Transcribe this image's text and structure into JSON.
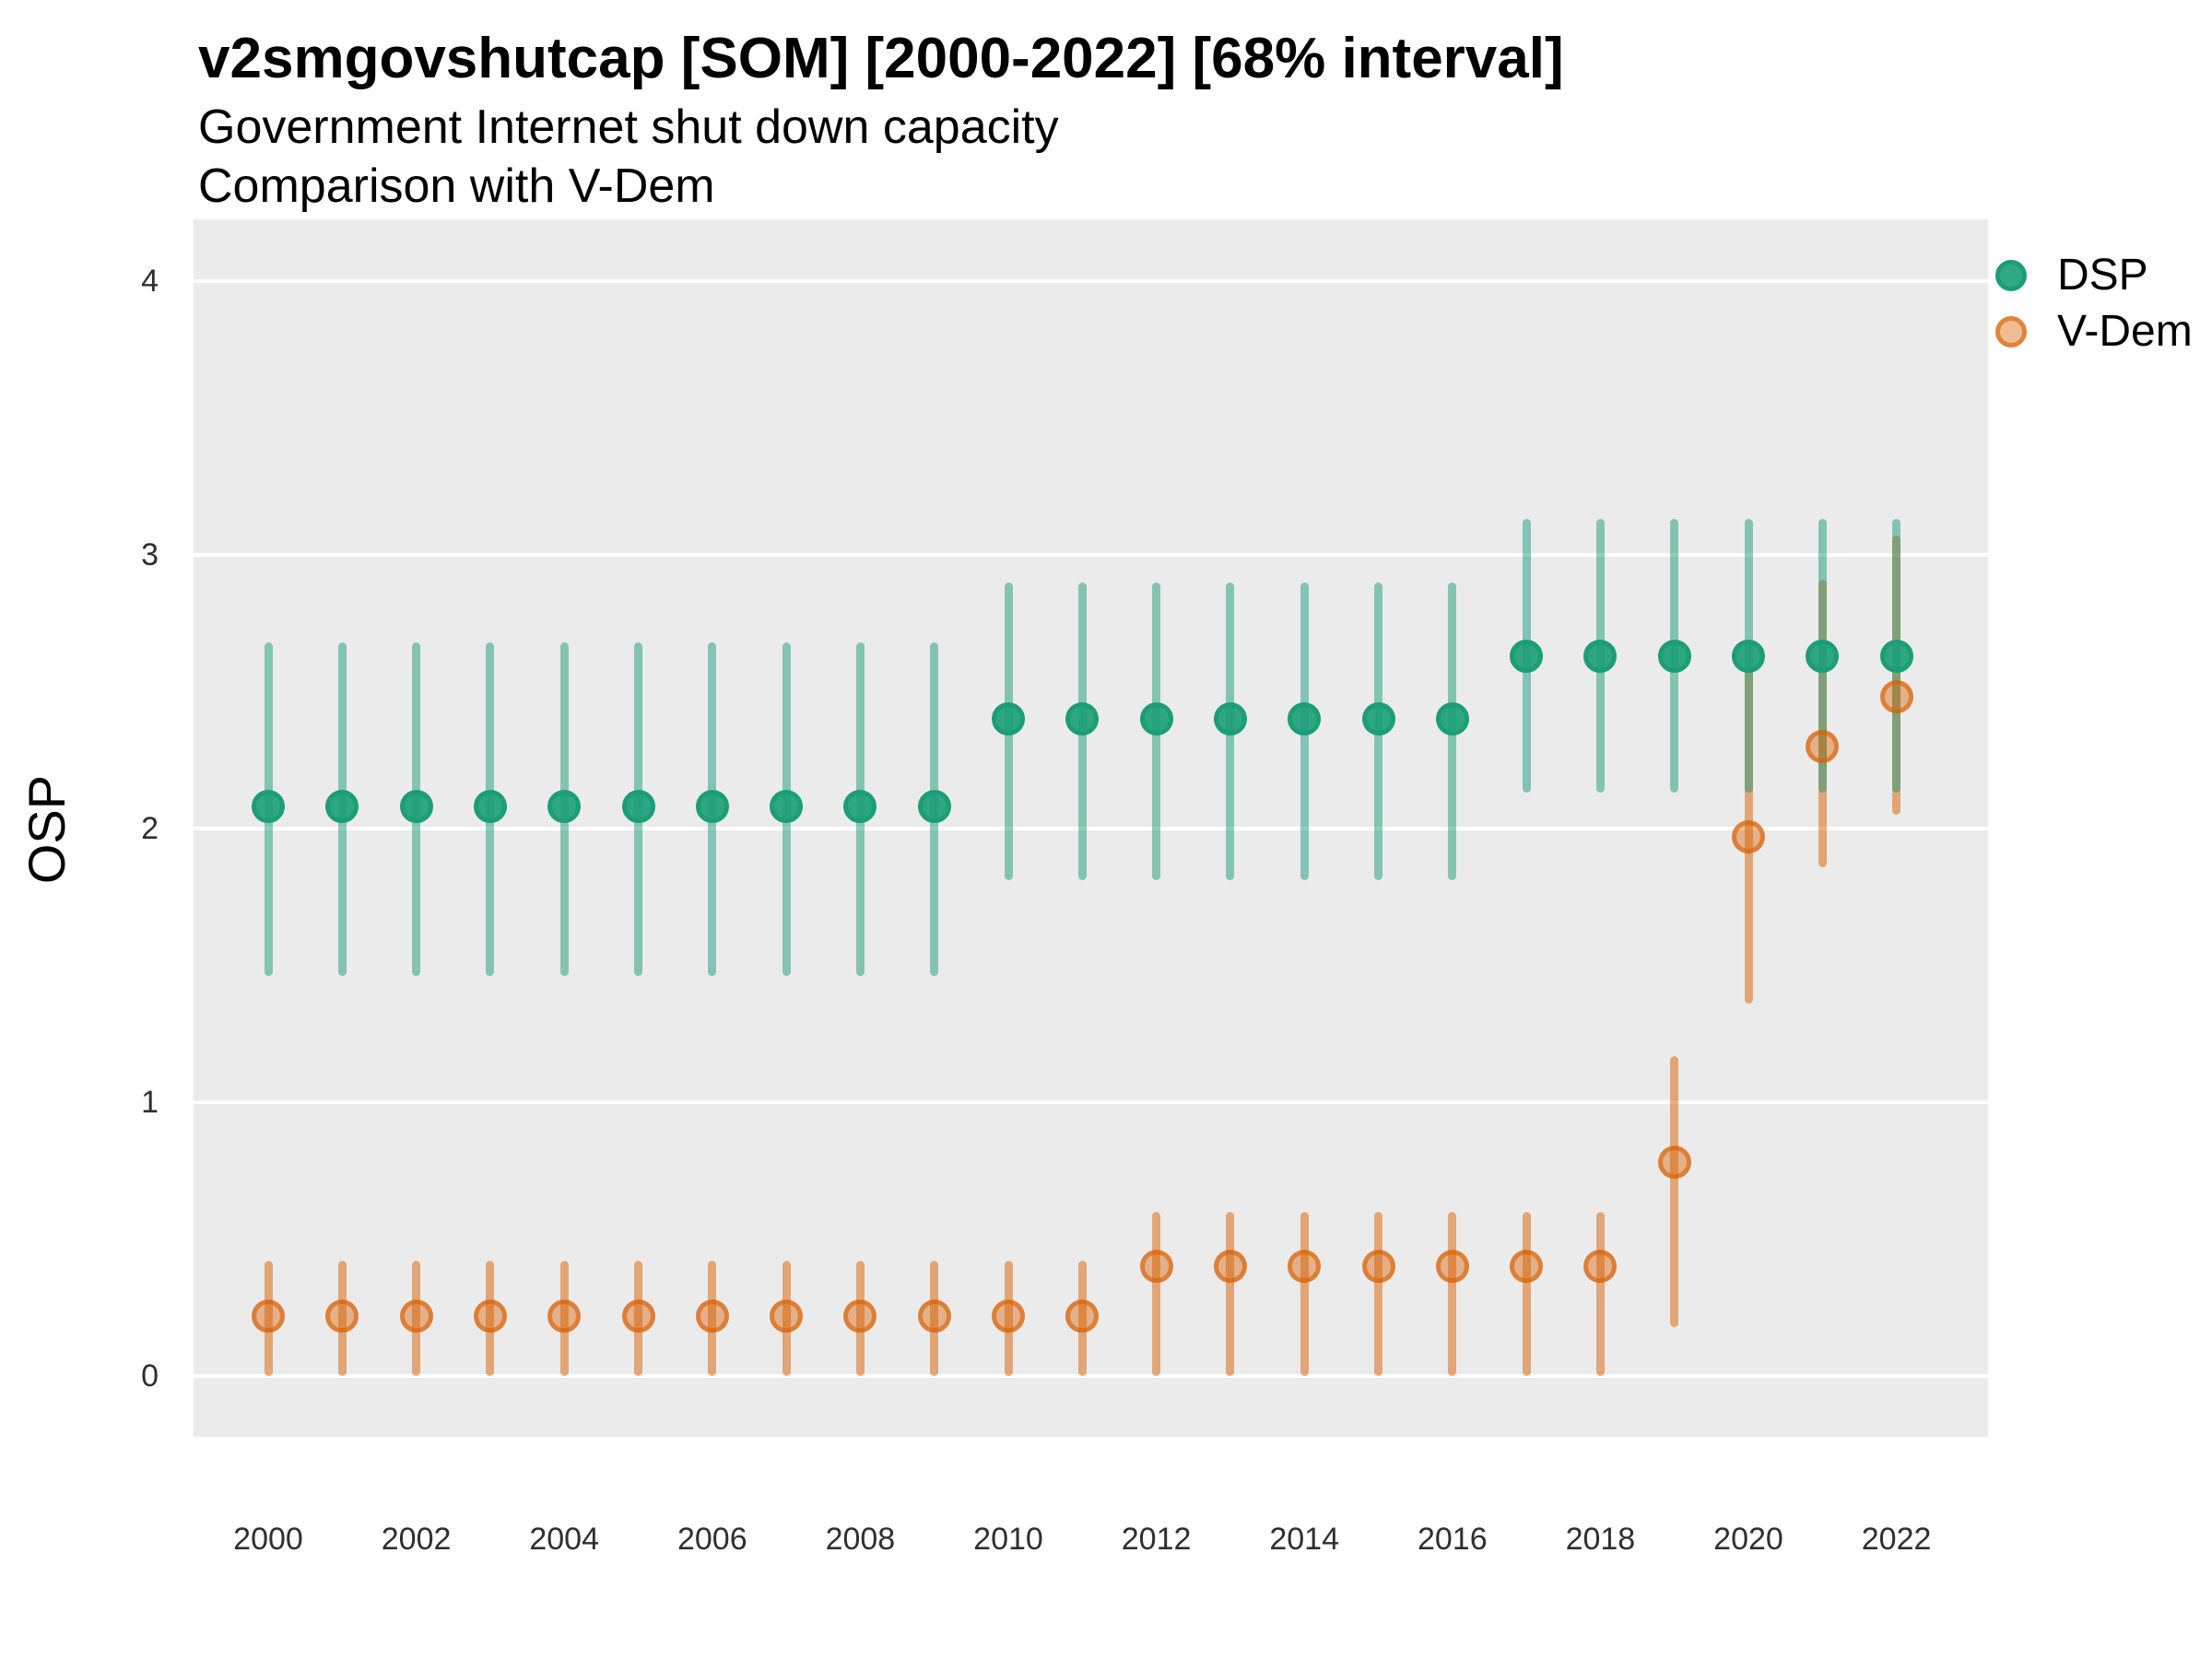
{
  "header": {
    "title": "v2smgovshutcap [SOM] [2000-2022] [68% interval]",
    "subtitle_line1": "Government Internet shut down capacity",
    "subtitle_line2": "Comparison with V-Dem"
  },
  "axes": {
    "y_title": "OSP",
    "y_tick_labels": [
      "4",
      "3",
      "2",
      "1",
      "0"
    ],
    "y_tick_values": [
      4,
      3,
      2,
      1,
      0
    ],
    "x_tick_years": [
      2000,
      2002,
      2004,
      2006,
      2008,
      2010,
      2012,
      2014,
      2016,
      2018,
      2020,
      2022
    ]
  },
  "legend": {
    "items": [
      {
        "label": "DSP",
        "color": "#1B9E77"
      },
      {
        "label": "V-Dem",
        "color": "#D95F02"
      }
    ]
  },
  "colors": {
    "panel_bg": "#EBEBEB",
    "gridline": "#FFFFFF",
    "dsp_green": "#1B9E77",
    "vdem_orange": "#D95F02"
  },
  "chart_data": {
    "type": "scatter",
    "subtype": "pointrange",
    "title": "v2smgovshutcap [SOM] [2000-2022] [68% interval]",
    "subtitle": [
      "Government Internet shut down capacity",
      "Comparison with V-Dem"
    ],
    "interval": "68%",
    "xlabel": "",
    "ylabel": "OSP",
    "ylim": [
      -0.25,
      4.25
    ],
    "grid": "horizontal-major-only",
    "legend_position": "right-top",
    "x": [
      2000,
      2001,
      2002,
      2003,
      2004,
      2005,
      2006,
      2007,
      2008,
      2009,
      2010,
      2011,
      2012,
      2013,
      2014,
      2015,
      2016,
      2017,
      2018,
      2019,
      2020,
      2021,
      2022
    ],
    "series": [
      {
        "name": "DSP",
        "color": "#1B9E77",
        "mean": [
          2.08,
          2.08,
          2.08,
          2.08,
          2.08,
          2.08,
          2.08,
          2.08,
          2.08,
          2.08,
          2.4,
          2.4,
          2.4,
          2.4,
          2.4,
          2.4,
          2.4,
          2.63,
          2.63,
          2.63,
          2.63,
          2.63,
          2.63
        ],
        "lo": [
          1.46,
          1.46,
          1.46,
          1.46,
          1.46,
          1.46,
          1.46,
          1.46,
          1.46,
          1.46,
          1.81,
          1.81,
          1.81,
          1.81,
          1.81,
          1.81,
          1.81,
          2.13,
          2.13,
          2.13,
          2.13,
          2.13,
          2.13
        ],
        "hi": [
          2.68,
          2.68,
          2.68,
          2.68,
          2.68,
          2.68,
          2.68,
          2.68,
          2.68,
          2.68,
          2.9,
          2.9,
          2.9,
          2.9,
          2.9,
          2.9,
          2.9,
          3.13,
          3.13,
          3.13,
          3.13,
          3.13,
          3.13
        ]
      },
      {
        "name": "V-Dem",
        "color": "#D95F02",
        "mean": [
          0.22,
          0.22,
          0.22,
          0.22,
          0.22,
          0.22,
          0.22,
          0.22,
          0.22,
          0.22,
          0.22,
          0.22,
          0.4,
          0.4,
          0.4,
          0.4,
          0.4,
          0.4,
          0.4,
          0.78,
          1.97,
          2.3,
          2.48
        ],
        "lo": [
          0.0,
          0.0,
          0.0,
          0.0,
          0.0,
          0.0,
          0.0,
          0.0,
          0.0,
          0.0,
          0.0,
          0.0,
          0.0,
          0.0,
          0.0,
          0.0,
          0.0,
          0.0,
          0.0,
          0.18,
          1.36,
          1.86,
          2.05
        ],
        "hi": [
          0.42,
          0.42,
          0.42,
          0.42,
          0.42,
          0.42,
          0.42,
          0.42,
          0.42,
          0.42,
          0.42,
          0.42,
          0.6,
          0.6,
          0.6,
          0.6,
          0.6,
          0.6,
          0.6,
          1.17,
          2.6,
          2.91,
          3.07
        ]
      }
    ]
  }
}
